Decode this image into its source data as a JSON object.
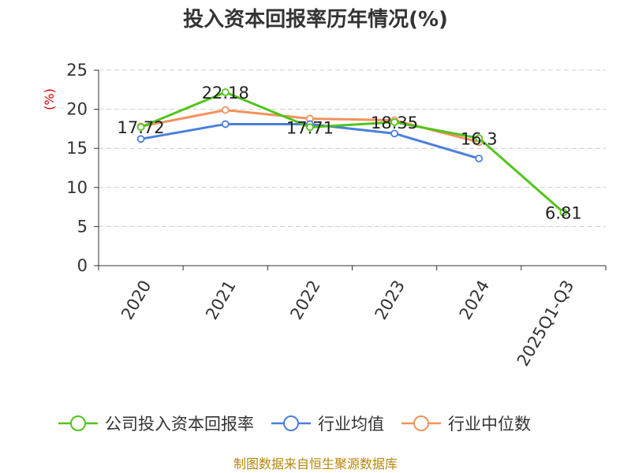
{
  "chart_data": {
    "type": "line",
    "title": "投入资本回报率历年情况(%)",
    "ylabel": "(%)",
    "xlabel": "",
    "categories": [
      "2020",
      "2021",
      "2022",
      "2023",
      "2024",
      "2025Q1-Q3"
    ],
    "ylim": [
      0,
      25
    ],
    "yticks": [
      0,
      5,
      10,
      15,
      20,
      25
    ],
    "grid": true,
    "legend_position": "bottom",
    "series": [
      {
        "name": "公司投入资本回报率",
        "color": "#52c41a",
        "values": [
          17.72,
          22.18,
          17.71,
          18.35,
          16.3,
          6.81
        ],
        "labels": [
          "17.72",
          "22.18",
          "17.71",
          "18.35",
          "16.3",
          "6.81"
        ]
      },
      {
        "name": "行业均值",
        "color": "#4a7fdc",
        "values": [
          16.2,
          18.1,
          18.1,
          16.9,
          13.7,
          null
        ]
      },
      {
        "name": "行业中位数",
        "color": "#f4915c",
        "values": [
          17.8,
          19.9,
          18.8,
          18.6,
          15.8,
          null
        ]
      }
    ]
  },
  "source": "制图数据来自恒生聚源数据库",
  "colors": {
    "ylabel": "#cc0000",
    "source": "#b8860b",
    "grid": "#cccccc",
    "axis": "#333333"
  }
}
